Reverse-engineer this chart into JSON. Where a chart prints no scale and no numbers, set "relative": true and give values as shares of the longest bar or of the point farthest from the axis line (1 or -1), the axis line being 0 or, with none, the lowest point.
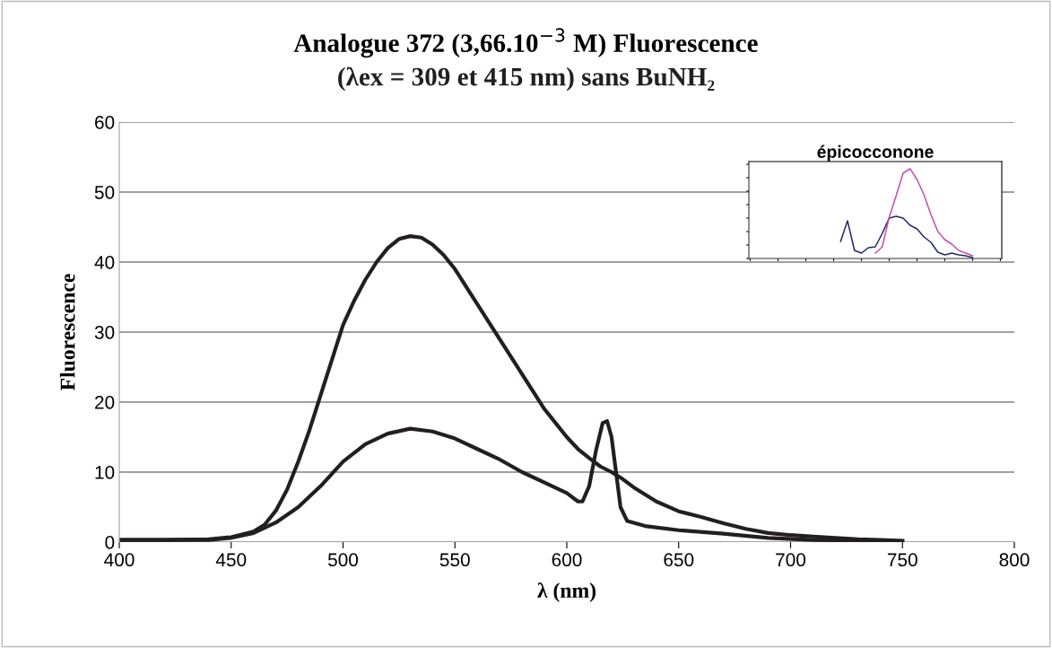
{
  "chart_data": [
    {
      "type": "line",
      "title": "Analogue 372 (3,66.10$^{−3}$ M) Fluorescence",
      "subtitle": "(λex = 309 et 415 nm) sans BuNH₂",
      "xlabel": "λ (nm)",
      "ylabel": "Fluorescence",
      "xlim": [
        400,
        800
      ],
      "xticks": [
        400,
        450,
        500,
        550,
        600,
        650,
        700,
        750,
        800
      ],
      "ylim": [
        0,
        60
      ],
      "yticks": [
        0,
        10,
        20,
        30,
        40,
        50,
        60
      ],
      "grid": "y",
      "marker": "none",
      "line_style": "solid",
      "series": [
        {
          "color": "#231f20",
          "x": [
            400,
            420,
            440,
            450,
            460,
            465,
            470,
            475,
            480,
            485,
            490,
            495,
            500,
            505,
            510,
            515,
            520,
            525,
            530,
            535,
            540,
            545,
            550,
            555,
            560,
            565,
            570,
            575,
            580,
            585,
            590,
            595,
            600,
            605,
            610,
            615,
            620,
            625,
            630,
            640,
            650,
            660,
            670,
            680,
            690,
            700,
            710,
            720,
            730,
            740,
            750
          ],
          "values": [
            0.3,
            0.3,
            0.4,
            0.7,
            1.5,
            2.5,
            4.5,
            7.5,
            11.5,
            16,
            21,
            26,
            31,
            34.5,
            37.5,
            40,
            42,
            43.3,
            43.7,
            43.5,
            42.5,
            41,
            39,
            36.5,
            34,
            31.5,
            29,
            26.5,
            24,
            21.5,
            19,
            17,
            15,
            13.3,
            12,
            10.8,
            10,
            9,
            7.8,
            5.8,
            4.4,
            3.6,
            2.7,
            1.9,
            1.3,
            1,
            0.8,
            0.6,
            0.4,
            0.3,
            0.2
          ]
        },
        {
          "color": "#231f20",
          "x": [
            400,
            440,
            450,
            460,
            470,
            480,
            490,
            500,
            510,
            520,
            530,
            540,
            550,
            560,
            570,
            580,
            590,
            600,
            605,
            607,
            610,
            613,
            616,
            618,
            620,
            622,
            624,
            627,
            635,
            650,
            670,
            690,
            710,
            730,
            750
          ],
          "values": [
            0.3,
            0.3,
            0.6,
            1.3,
            2.8,
            5,
            8,
            11.5,
            14,
            15.5,
            16.2,
            15.8,
            14.8,
            13.3,
            11.8,
            10,
            8.5,
            7,
            5.8,
            5.8,
            8,
            13,
            17,
            17.3,
            15,
            10,
            5,
            3,
            2.3,
            1.7,
            1.2,
            0.6,
            0.3,
            0.2,
            0.1
          ]
        }
      ]
    },
    {
      "type": "line",
      "title": "épicocconone",
      "relative": true,
      "marker": "none",
      "line_style": "solid",
      "categories": [
        null,
        null,
        null,
        null,
        null,
        null,
        null,
        null,
        null,
        null,
        null,
        null,
        null,
        null,
        null,
        null,
        null,
        null,
        null,
        null,
        null,
        null,
        null,
        null,
        null,
        null,
        null,
        null,
        null,
        null,
        null,
        null,
        null,
        null,
        null,
        null,
        null
      ],
      "series": [
        {
          "color": "#1f2a6b",
          "values": [
            null,
            null,
            null,
            null,
            null,
            null,
            null,
            null,
            null,
            null,
            null,
            null,
            null,
            0.19,
            0.42,
            0.09,
            0.06,
            0.12,
            0.13,
            0.28,
            0.45,
            0.47,
            0.45,
            0.37,
            0.33,
            0.24,
            0.18,
            0.07,
            0.04,
            0.06,
            0.04,
            0.03,
            0.01,
            null,
            null,
            null,
            null
          ]
        },
        {
          "color": "#c050b0",
          "values": [
            null,
            null,
            null,
            null,
            null,
            null,
            null,
            null,
            null,
            null,
            null,
            null,
            null,
            null,
            null,
            null,
            null,
            null,
            0.06,
            0.13,
            0.46,
            0.7,
            0.95,
            1.0,
            0.88,
            0.71,
            0.49,
            0.3,
            0.21,
            0.16,
            0.09,
            0.06,
            0.03,
            null,
            null,
            null,
            null
          ]
        }
      ]
    }
  ]
}
